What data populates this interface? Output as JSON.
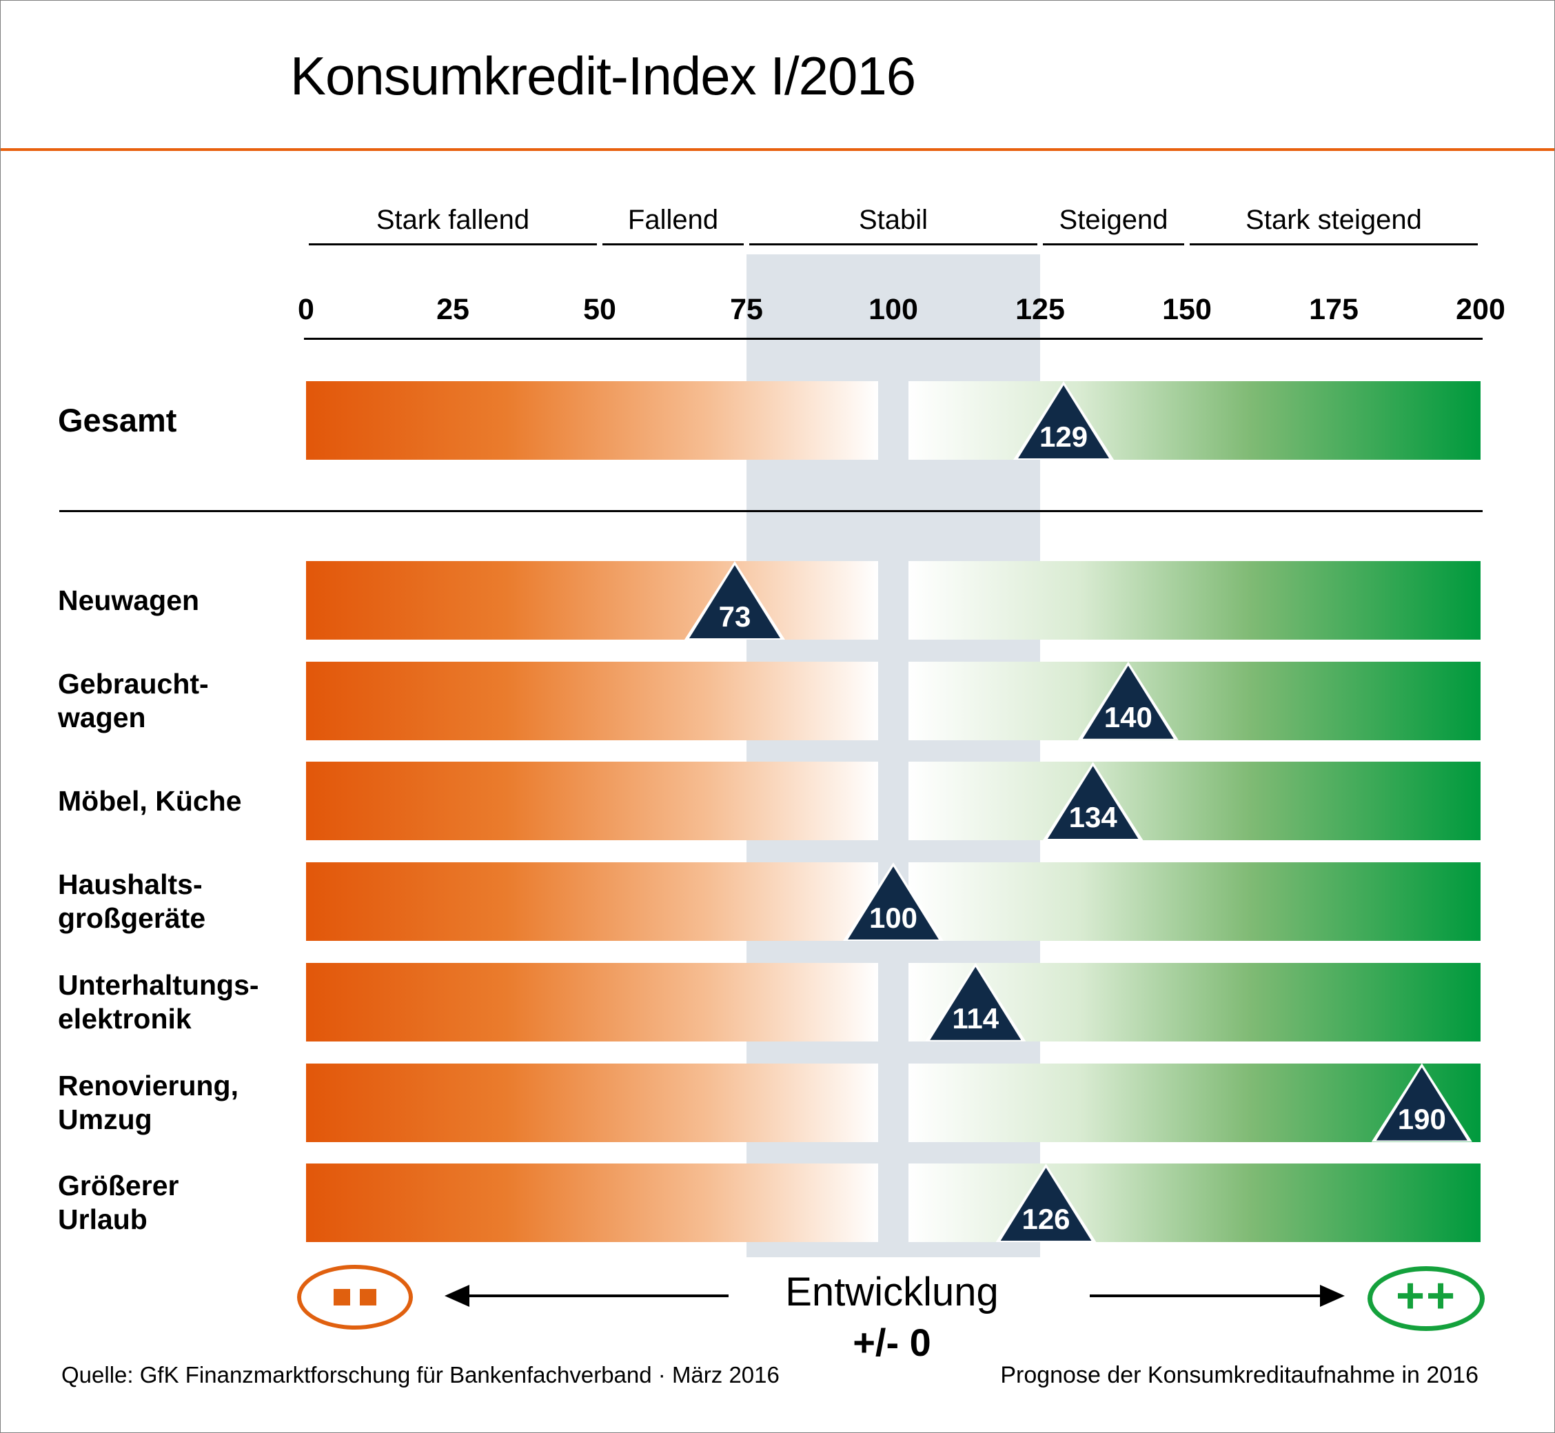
{
  "title": "Konsumkredit-Index I/2016",
  "colors": {
    "orange": "#e8600d",
    "green": "#009a3d",
    "navy": "#102a47",
    "band_gray": "#dde3e9"
  },
  "chart_data": {
    "type": "bar",
    "orientation": "horizontal",
    "title": "Konsumkredit-Index I/2016",
    "axis": {
      "min": 0,
      "max": 200,
      "ticks": [
        0,
        25,
        50,
        75,
        100,
        125,
        150,
        175,
        200
      ]
    },
    "zones": [
      {
        "label": "Stark fallend",
        "from": 0,
        "to": 50
      },
      {
        "label": "Fallend",
        "from": 50,
        "to": 75
      },
      {
        "label": "Stabil",
        "from": 75,
        "to": 125
      },
      {
        "label": "Steigend",
        "from": 125,
        "to": 150
      },
      {
        "label": "Stark steigend",
        "from": 150,
        "to": 200
      }
    ],
    "stable_band": {
      "from": 75,
      "to": 125
    },
    "categories": [
      "Gesamt",
      "Neuwagen",
      "Gebrauchtwagen",
      "Möbel, Küche",
      "Haushaltsgroßgeräte",
      "Unterhaltungselektronik",
      "Renovierung, Umzug",
      "Größerer Urlaub"
    ],
    "category_label_lines": [
      [
        "Gesamt"
      ],
      [
        "Neuwagen"
      ],
      [
        "Gebraucht-",
        "wagen"
      ],
      [
        "Möbel, Küche"
      ],
      [
        "Haushalts-",
        "großgeräte"
      ],
      [
        "Unterhaltungs-",
        "elektronik"
      ],
      [
        "Renovierung,",
        "Umzug"
      ],
      [
        "Größerer",
        "Urlaub"
      ]
    ],
    "values": [
      129,
      73,
      140,
      134,
      100,
      114,
      190,
      126
    ],
    "legend_position": "bottom",
    "grid": false
  },
  "legend": {
    "title": "Entwicklung",
    "zero_label": "+/- 0",
    "plus_label": "++"
  },
  "footer": {
    "source": "Quelle: GfK Finanzmarktforschung für Bankenfachverband · März 2016",
    "note": "Prognose der Konsumkreditaufnahme in 2016"
  }
}
